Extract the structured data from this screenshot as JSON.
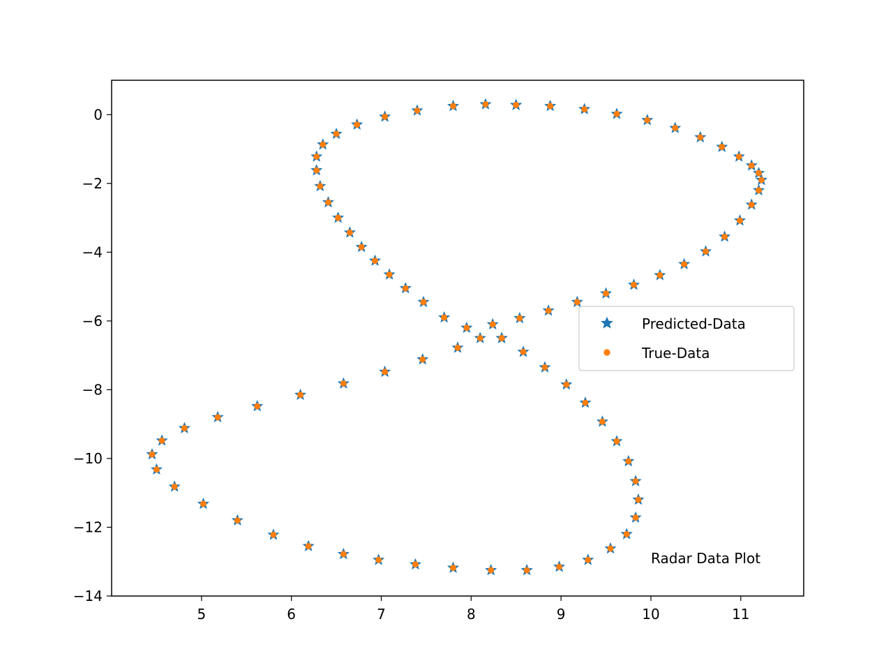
{
  "chart_data": {
    "type": "scatter",
    "title": "",
    "xlabel": "",
    "ylabel": "",
    "xlim": [
      4.0,
      11.7
    ],
    "ylim": [
      -14,
      1
    ],
    "xticks": [
      5,
      6,
      7,
      8,
      9,
      10,
      11
    ],
    "yticks": [
      0,
      -2,
      -4,
      -6,
      -8,
      -10,
      -12,
      -14
    ],
    "xtick_labels": [
      "5",
      "6",
      "7",
      "8",
      "9",
      "10",
      "11"
    ],
    "ytick_labels": [
      "0",
      "−2",
      "−4",
      "−6",
      "−8",
      "−10",
      "−12",
      "−14"
    ],
    "grid": false,
    "legend": {
      "placement": "center-right"
    },
    "annotation": {
      "text": "Radar Data Plot",
      "x": 10.0,
      "y": -12.9
    },
    "series": [
      {
        "name": "Predicted-Data",
        "marker": "star",
        "color": "#1f77b4",
        "x": [
          8.5,
          8.88,
          9.26,
          9.62,
          9.96,
          10.27,
          10.55,
          10.79,
          10.98,
          11.12,
          11.2,
          11.23,
          11.2,
          11.12,
          10.99,
          10.82,
          10.61,
          10.37,
          10.1,
          9.81,
          9.5,
          9.18,
          8.86,
          8.54,
          8.24,
          7.95,
          7.7,
          7.47,
          7.27,
          7.09,
          6.93,
          6.78,
          6.65,
          6.52,
          6.41,
          6.32,
          6.28,
          6.28,
          6.35,
          6.5,
          6.73,
          7.04,
          7.4,
          7.8,
          8.16,
          8.5,
          8.34,
          8.58,
          8.82,
          9.06,
          9.27,
          9.46,
          9.62,
          9.75,
          9.83,
          9.86,
          9.83,
          9.73,
          9.55,
          9.3,
          8.98,
          8.62,
          8.22,
          7.8,
          7.38,
          6.97,
          6.58,
          6.19,
          5.8,
          5.4,
          5.02,
          4.7,
          4.5,
          4.45,
          4.56,
          4.81,
          5.18,
          5.62,
          6.1,
          6.58,
          7.04,
          7.46,
          7.85,
          8.1,
          8.34
        ],
        "y": [
          0.28,
          0.25,
          0.16,
          0.02,
          -0.16,
          -0.39,
          -0.66,
          -0.94,
          -1.22,
          -1.48,
          -1.7,
          -1.9,
          -2.2,
          -2.62,
          -3.08,
          -3.55,
          -3.98,
          -4.35,
          -4.67,
          -4.95,
          -5.2,
          -5.45,
          -5.7,
          -5.92,
          -6.1,
          -6.2,
          -5.9,
          -5.45,
          -5.05,
          -4.65,
          -4.25,
          -3.85,
          -3.43,
          -3.0,
          -2.55,
          -2.08,
          -1.62,
          -1.22,
          -0.87,
          -0.56,
          -0.29,
          -0.06,
          0.12,
          0.25,
          0.3,
          0.28,
          -6.5,
          -6.9,
          -7.35,
          -7.85,
          -8.38,
          -8.93,
          -9.5,
          -10.08,
          -10.66,
          -11.2,
          -11.72,
          -12.2,
          -12.62,
          -12.95,
          -13.15,
          -13.25,
          -13.25,
          -13.18,
          -13.08,
          -12.95,
          -12.78,
          -12.55,
          -12.22,
          -11.8,
          -11.32,
          -10.82,
          -10.32,
          -9.88,
          -9.48,
          -9.12,
          -8.8,
          -8.48,
          -8.15,
          -7.82,
          -7.48,
          -7.12,
          -6.78,
          -6.5,
          -6.5
        ]
      },
      {
        "name": "True-Data",
        "marker": "circle",
        "color": "#ff7f0e",
        "x": [
          8.5,
          8.88,
          9.26,
          9.62,
          9.96,
          10.27,
          10.55,
          10.79,
          10.98,
          11.12,
          11.2,
          11.23,
          11.2,
          11.12,
          10.99,
          10.82,
          10.61,
          10.37,
          10.1,
          9.81,
          9.5,
          9.18,
          8.86,
          8.54,
          8.24,
          7.95,
          7.7,
          7.47,
          7.27,
          7.09,
          6.93,
          6.78,
          6.65,
          6.52,
          6.41,
          6.32,
          6.28,
          6.28,
          6.35,
          6.5,
          6.73,
          7.04,
          7.4,
          7.8,
          8.16,
          8.5,
          8.34,
          8.58,
          8.82,
          9.06,
          9.27,
          9.46,
          9.62,
          9.75,
          9.83,
          9.86,
          9.83,
          9.73,
          9.55,
          9.3,
          8.98,
          8.62,
          8.22,
          7.8,
          7.38,
          6.97,
          6.58,
          6.19,
          5.8,
          5.4,
          5.02,
          4.7,
          4.5,
          4.45,
          4.56,
          4.81,
          5.18,
          5.62,
          6.1,
          6.58,
          7.04,
          7.46,
          7.85,
          8.1,
          8.34
        ],
        "y": [
          0.28,
          0.25,
          0.16,
          0.02,
          -0.16,
          -0.39,
          -0.66,
          -0.94,
          -1.22,
          -1.48,
          -1.7,
          -1.9,
          -2.2,
          -2.62,
          -3.08,
          -3.55,
          -3.98,
          -4.35,
          -4.67,
          -4.95,
          -5.2,
          -5.45,
          -5.7,
          -5.92,
          -6.1,
          -6.2,
          -5.9,
          -5.45,
          -5.05,
          -4.65,
          -4.25,
          -3.85,
          -3.43,
          -3.0,
          -2.55,
          -2.08,
          -1.62,
          -1.22,
          -0.87,
          -0.56,
          -0.29,
          -0.06,
          0.12,
          0.25,
          0.3,
          0.28,
          -6.5,
          -6.9,
          -7.35,
          -7.85,
          -8.38,
          -8.93,
          -9.5,
          -10.08,
          -10.66,
          -11.2,
          -11.72,
          -12.2,
          -12.62,
          -12.95,
          -13.15,
          -13.25,
          -13.25,
          -13.18,
          -13.08,
          -12.95,
          -12.78,
          -12.55,
          -12.22,
          -11.8,
          -11.32,
          -10.82,
          -10.32,
          -9.88,
          -9.48,
          -9.12,
          -8.8,
          -8.48,
          -8.15,
          -7.82,
          -7.48,
          -7.12,
          -6.78,
          -6.5,
          -6.5
        ]
      }
    ]
  }
}
